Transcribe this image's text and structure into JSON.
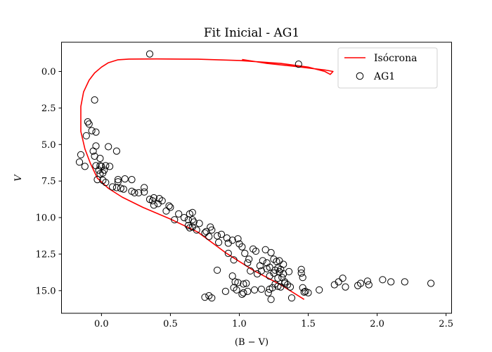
{
  "chart_data": {
    "type": "scatter",
    "title": "Fit Inicial - AG1",
    "xlabel": "(B − V)",
    "ylabel": "V",
    "xlim": [
      -0.29,
      2.54
    ],
    "ylim": [
      16.55,
      -2.0
    ],
    "y_inverted": true,
    "grid": false,
    "legend_position": "top-right",
    "xticks": [
      "0.0",
      "0.5",
      "1.0",
      "1.5",
      "2.0",
      "2.5"
    ],
    "xtick_values": [
      0.0,
      0.5,
      1.0,
      1.5,
      2.0,
      2.5
    ],
    "yticks": [
      "0.0",
      "2.5",
      "5.0",
      "7.5",
      "10.0",
      "12.5",
      "15.0"
    ],
    "ytick_values": [
      0.0,
      2.5,
      5.0,
      7.5,
      10.0,
      12.5,
      15.0
    ],
    "colors": {
      "isochrone": "#ff0000",
      "points": "#000000"
    },
    "series": [
      {
        "name": "Isócrona",
        "kind": "line",
        "points": [
          [
            1.47,
            15.6
          ],
          [
            1.3,
            14.6
          ],
          [
            1.1,
            13.6
          ],
          [
            0.9,
            12.4
          ],
          [
            0.7,
            11.0
          ],
          [
            0.5,
            10.1
          ],
          [
            0.3,
            9.3
          ],
          [
            0.15,
            8.6
          ],
          [
            0.05,
            8.0
          ],
          [
            -0.03,
            7.3
          ],
          [
            -0.08,
            6.3
          ],
          [
            -0.12,
            5.3
          ],
          [
            -0.15,
            4.1
          ],
          [
            -0.15,
            2.4
          ],
          [
            -0.13,
            1.4
          ],
          [
            -0.09,
            0.6
          ],
          [
            -0.05,
            0.1
          ],
          [
            0.0,
            -0.3
          ],
          [
            0.05,
            -0.6
          ],
          [
            0.12,
            -0.8
          ],
          [
            0.2,
            -0.85
          ],
          [
            0.4,
            -0.86
          ],
          [
            0.7,
            -0.84
          ],
          [
            1.0,
            -0.75
          ],
          [
            1.3,
            -0.55
          ],
          [
            1.5,
            -0.3
          ],
          [
            1.62,
            0.0
          ],
          [
            1.66,
            0.2
          ],
          [
            1.68,
            0.0
          ],
          [
            1.62,
            -0.1
          ],
          [
            1.4,
            -0.35
          ],
          [
            1.2,
            -0.55
          ],
          [
            1.02,
            -0.82
          ]
        ]
      },
      {
        "name": "AG1",
        "kind": "scatter",
        "points": [
          [
            0.35,
            -1.2
          ],
          [
            1.43,
            -0.5
          ],
          [
            -0.05,
            1.95
          ],
          [
            -0.1,
            3.45
          ],
          [
            -0.09,
            3.6
          ],
          [
            -0.07,
            4.05
          ],
          [
            -0.04,
            4.15
          ],
          [
            -0.11,
            4.4
          ],
          [
            -0.04,
            5.1
          ],
          [
            0.05,
            5.15
          ],
          [
            -0.06,
            5.45
          ],
          [
            0.11,
            5.45
          ],
          [
            -0.15,
            5.7
          ],
          [
            -0.05,
            5.8
          ],
          [
            -0.01,
            5.95
          ],
          [
            -0.16,
            6.2
          ],
          [
            -0.12,
            6.5
          ],
          [
            -0.04,
            6.45
          ],
          [
            -0.01,
            6.45
          ],
          [
            0.0,
            6.5
          ],
          [
            0.03,
            6.45
          ],
          [
            0.06,
            6.5
          ],
          [
            -0.02,
            6.75
          ],
          [
            0.02,
            6.75
          ],
          [
            -0.01,
            7.0
          ],
          [
            0.01,
            6.95
          ],
          [
            -0.03,
            7.4
          ],
          [
            0.01,
            7.45
          ],
          [
            0.03,
            7.6
          ],
          [
            0.12,
            7.4
          ],
          [
            0.12,
            7.55
          ],
          [
            0.17,
            7.35
          ],
          [
            0.22,
            7.4
          ],
          [
            0.11,
            7.95
          ],
          [
            0.14,
            8.0
          ],
          [
            0.16,
            8.05
          ],
          [
            0.08,
            7.9
          ],
          [
            0.22,
            8.2
          ],
          [
            0.24,
            8.3
          ],
          [
            0.27,
            8.3
          ],
          [
            0.31,
            7.95
          ],
          [
            0.31,
            8.25
          ],
          [
            0.35,
            8.75
          ],
          [
            0.38,
            8.65
          ],
          [
            0.37,
            8.85
          ],
          [
            0.38,
            9.15
          ],
          [
            0.42,
            8.7
          ],
          [
            0.44,
            8.85
          ],
          [
            0.41,
            9.05
          ],
          [
            0.47,
            9.55
          ],
          [
            0.49,
            9.2
          ],
          [
            0.5,
            9.3
          ],
          [
            0.53,
            10.15
          ],
          [
            0.56,
            9.75
          ],
          [
            0.6,
            10.0
          ],
          [
            0.63,
            10.15
          ],
          [
            0.64,
            9.75
          ],
          [
            0.66,
            9.65
          ],
          [
            0.66,
            10.15
          ],
          [
            0.67,
            10.3
          ],
          [
            0.63,
            10.55
          ],
          [
            0.64,
            10.7
          ],
          [
            0.66,
            10.65
          ],
          [
            0.69,
            10.85
          ],
          [
            0.71,
            10.4
          ],
          [
            0.75,
            11.05
          ],
          [
            0.76,
            10.95
          ],
          [
            0.79,
            10.65
          ],
          [
            0.8,
            10.85
          ],
          [
            0.78,
            11.3
          ],
          [
            0.84,
            11.25
          ],
          [
            0.85,
            11.7
          ],
          [
            0.87,
            11.15
          ],
          [
            0.91,
            11.4
          ],
          [
            0.92,
            11.75
          ],
          [
            0.95,
            11.55
          ],
          [
            0.92,
            12.45
          ],
          [
            0.96,
            12.9
          ],
          [
            0.99,
            11.45
          ],
          [
            1.0,
            11.8
          ],
          [
            1.02,
            12.0
          ],
          [
            1.04,
            12.45
          ],
          [
            1.06,
            13.1
          ],
          [
            1.07,
            12.85
          ],
          [
            1.08,
            13.65
          ],
          [
            1.1,
            12.15
          ],
          [
            1.12,
            12.3
          ],
          [
            1.13,
            13.85
          ],
          [
            1.15,
            13.3
          ],
          [
            1.16,
            13.65
          ],
          [
            1.17,
            12.95
          ],
          [
            1.19,
            12.2
          ],
          [
            1.2,
            13.1
          ],
          [
            1.2,
            13.5
          ],
          [
            1.22,
            13.4
          ],
          [
            1.22,
            14.0
          ],
          [
            1.23,
            12.4
          ],
          [
            1.25,
            12.85
          ],
          [
            1.25,
            13.8
          ],
          [
            1.26,
            13.6
          ],
          [
            1.27,
            13.0
          ],
          [
            1.28,
            13.45
          ],
          [
            1.28,
            14.15
          ],
          [
            1.29,
            12.95
          ],
          [
            1.29,
            13.7
          ],
          [
            1.3,
            13.55
          ],
          [
            1.31,
            14.1
          ],
          [
            1.32,
            13.2
          ],
          [
            1.32,
            13.85
          ],
          [
            1.33,
            14.4
          ],
          [
            1.35,
            14.6
          ],
          [
            1.36,
            13.7
          ],
          [
            0.84,
            13.6
          ],
          [
            0.95,
            14.0
          ],
          [
            0.97,
            14.4
          ],
          [
            0.99,
            14.45
          ],
          [
            1.03,
            14.55
          ],
          [
            1.05,
            14.5
          ],
          [
            1.26,
            14.55
          ],
          [
            1.28,
            14.7
          ],
          [
            1.3,
            14.75
          ],
          [
            1.33,
            14.5
          ],
          [
            1.37,
            14.75
          ],
          [
            0.96,
            14.8
          ],
          [
            0.98,
            14.95
          ],
          [
            1.06,
            15.05
          ],
          [
            1.11,
            14.95
          ],
          [
            1.16,
            14.9
          ],
          [
            1.22,
            14.9
          ],
          [
            1.24,
            14.8
          ],
          [
            0.9,
            15.05
          ],
          [
            1.03,
            15.15
          ],
          [
            1.02,
            15.25
          ],
          [
            1.21,
            15.15
          ],
          [
            1.23,
            15.6
          ],
          [
            1.38,
            15.5
          ],
          [
            0.75,
            15.45
          ],
          [
            0.78,
            15.35
          ],
          [
            0.8,
            15.5
          ],
          [
            1.45,
            13.55
          ],
          [
            1.45,
            13.8
          ],
          [
            1.46,
            14.1
          ],
          [
            1.46,
            14.8
          ],
          [
            1.48,
            15.05
          ],
          [
            1.5,
            15.15
          ],
          [
            1.47,
            15.1
          ],
          [
            1.58,
            14.95
          ],
          [
            1.69,
            14.6
          ],
          [
            1.72,
            14.4
          ],
          [
            1.75,
            14.15
          ],
          [
            1.77,
            14.75
          ],
          [
            1.86,
            14.65
          ],
          [
            1.88,
            14.5
          ],
          [
            1.93,
            14.35
          ],
          [
            1.94,
            14.6
          ],
          [
            2.04,
            14.25
          ],
          [
            2.1,
            14.4
          ],
          [
            2.2,
            14.4
          ],
          [
            2.39,
            14.5
          ]
        ]
      }
    ]
  }
}
